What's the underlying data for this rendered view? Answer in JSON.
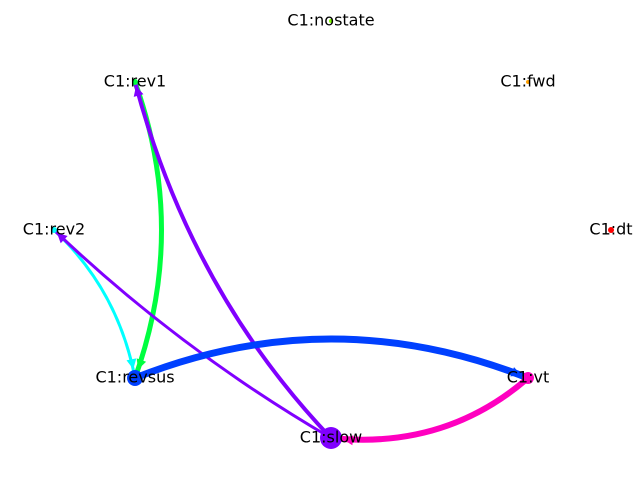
{
  "graph": {
    "nodes": [
      {
        "id": "nostate",
        "label": "C1:nostate",
        "color": "#80ff00"
      },
      {
        "id": "rev1",
        "label": "C1:rev1",
        "color": "#00ff40"
      },
      {
        "id": "fwd",
        "label": "C1:fwd",
        "color": "#ffa000"
      },
      {
        "id": "rev2",
        "label": "C1:rev2",
        "color": "#00ffff"
      },
      {
        "id": "dt",
        "label": "C1:dt",
        "color": "#ff0000"
      },
      {
        "id": "revsus",
        "label": "C1:revsus",
        "color": "#0040ff"
      },
      {
        "id": "vt",
        "label": "C1:vt",
        "color": "#ff00c0"
      },
      {
        "id": "slow",
        "label": "C1:slow",
        "color": "#8000ff"
      }
    ],
    "edges": [
      {
        "from": "rev1",
        "to": "revsus",
        "color": "#00ff40"
      },
      {
        "from": "rev2",
        "to": "revsus",
        "color": "#00ffff"
      },
      {
        "from": "slow",
        "to": "rev1",
        "color": "#8000ff"
      },
      {
        "from": "slow",
        "to": "rev2",
        "color": "#8000ff"
      },
      {
        "from": "revsus",
        "to": "vt",
        "color": "#0040ff"
      },
      {
        "from": "vt",
        "to": "slow",
        "color": "#ff00c0"
      }
    ]
  }
}
